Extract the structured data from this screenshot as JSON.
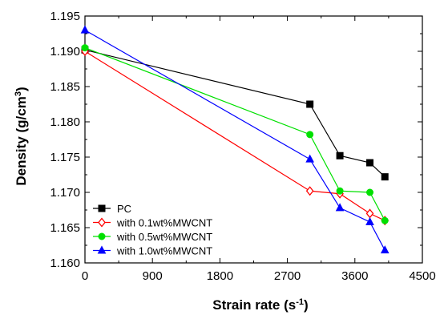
{
  "chart_data": {
    "type": "line",
    "xlabel": "Strain rate",
    "xlabel_unit": "(s",
    "xlabel_sup": "-1",
    "xlabel_close": ")",
    "ylabel": "Density",
    "ylabel_unit": "(g/cm",
    "ylabel_sup": "3",
    "ylabel_close": ")",
    "xlim": [
      0,
      4500
    ],
    "ylim": [
      1.16,
      1.195
    ],
    "xticks": [
      0,
      900,
      1800,
      2700,
      3600,
      4500
    ],
    "xtick_labels": [
      "0",
      "900",
      "1800",
      "2700",
      "3600",
      "4500"
    ],
    "yticks": [
      1.16,
      1.165,
      1.17,
      1.175,
      1.18,
      1.185,
      1.19,
      1.195
    ],
    "ytick_labels": [
      "1.160",
      "1.165",
      "1.170",
      "1.175",
      "1.180",
      "1.185",
      "1.190",
      "1.195"
    ],
    "grid": false,
    "legend_position": "bottom-left",
    "series": [
      {
        "name": "PC",
        "color": "#000000",
        "marker": "square",
        "x": [
          0,
          3000,
          3400,
          3800,
          4000
        ],
        "y": [
          1.1902,
          1.1825,
          1.1752,
          1.1742,
          1.1722
        ]
      },
      {
        "name": "with 0.1wt%MWCNT",
        "color": "#ff0000",
        "marker": "diamond-open",
        "x": [
          0,
          3000,
          3400,
          3800,
          4000
        ],
        "y": [
          1.19,
          1.1702,
          1.1698,
          1.167,
          1.166
        ]
      },
      {
        "name": "with 0.5wt%MWCNT",
        "color": "#00e000",
        "marker": "circle",
        "x": [
          0,
          3000,
          3400,
          3800,
          4000
        ],
        "y": [
          1.1905,
          1.1782,
          1.1702,
          1.17,
          1.166
        ]
      },
      {
        "name": "with 1.0wt%MWCNT",
        "color": "#0000ff",
        "marker": "triangle",
        "x": [
          0,
          3000,
          3400,
          3800,
          4000
        ],
        "y": [
          1.193,
          1.1747,
          1.1678,
          1.1658,
          1.1618
        ]
      }
    ]
  }
}
